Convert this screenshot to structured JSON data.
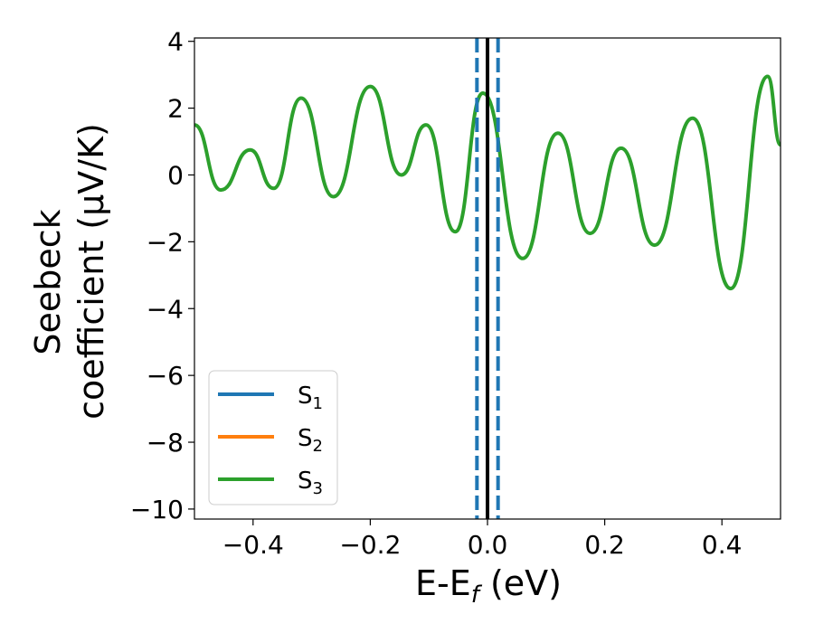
{
  "chart_data": {
    "type": "line",
    "xlabel": {
      "main": "E-E",
      "sub": "f",
      "tail": " (eV)"
    },
    "ylabel": {
      "line1": "Seebeck",
      "line2": "coefficient  (μV/K)"
    },
    "xlim": [
      -0.5,
      0.5
    ],
    "ylim": [
      -10.3,
      4.1
    ],
    "xticks": [
      -0.4,
      -0.2,
      0.0,
      0.2,
      0.4
    ],
    "xtick_labels": [
      "−0.4",
      "−0.2",
      "0.0",
      "0.2",
      "0.4"
    ],
    "yticks": [
      4,
      2,
      0,
      -2,
      -4,
      -6,
      -8,
      -10
    ],
    "ytick_labels": [
      "4",
      "2",
      "0",
      "−2",
      "−4",
      "−6",
      "−8",
      "−10"
    ],
    "grid": false,
    "legend": {
      "position": "lower-left"
    },
    "vlines": [
      {
        "x": 0.0,
        "style": "solid",
        "color": "#000000"
      },
      {
        "x": -0.018,
        "style": "dashed",
        "color": "#1f77b4"
      },
      {
        "x": 0.018,
        "style": "dashed",
        "color": "#1f77b4"
      }
    ],
    "series": [
      {
        "name": "S",
        "sub": "1",
        "color": "#1f77b4"
      },
      {
        "name": "S",
        "sub": "2",
        "color": "#ff7f0e"
      },
      {
        "name": "S",
        "sub": "3",
        "color": "#2ca02c",
        "x": [
          -0.5,
          -0.455,
          -0.405,
          -0.365,
          -0.318,
          -0.263,
          -0.2,
          -0.147,
          -0.105,
          -0.055,
          -0.008,
          0.06,
          0.12,
          0.175,
          0.228,
          0.285,
          0.35,
          0.415,
          0.478,
          0.5
        ],
        "y": [
          1.5,
          -0.45,
          0.75,
          -0.4,
          2.3,
          -0.65,
          2.65,
          0.0,
          1.5,
          -1.7,
          2.45,
          -2.5,
          1.25,
          -1.75,
          0.8,
          -2.1,
          1.7,
          -3.4,
          2.95,
          0.9
        ]
      }
    ]
  }
}
